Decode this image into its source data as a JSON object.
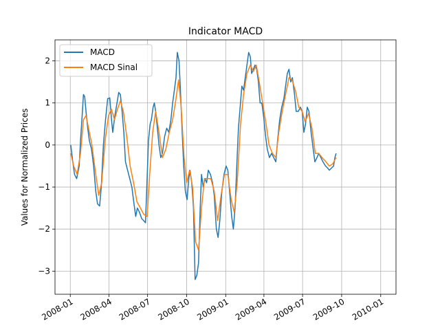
{
  "chart_data": {
    "type": "line",
    "title": "Indicator MACD",
    "xlabel": "",
    "ylabel": "Values for Normalized Prices",
    "xlim": [
      "2007-11-26",
      "2010-02-06"
    ],
    "ylim": [
      -3.55,
      2.5
    ],
    "x_ticks": [
      "2008-01",
      "2008-04",
      "2008-07",
      "2008-10",
      "2009-01",
      "2009-04",
      "2009-07",
      "2009-10",
      "2010-01"
    ],
    "y_ticks": [
      -3,
      -2,
      -1,
      0,
      1,
      2
    ],
    "grid": true,
    "legend_position": "top-left",
    "series": [
      {
        "name": "MACD",
        "color": "#1f77b4",
        "points": [
          [
            "2008-01-02",
            0.0
          ],
          [
            "2008-01-07",
            -0.4
          ],
          [
            "2008-01-11",
            -0.7
          ],
          [
            "2008-01-16",
            -0.8
          ],
          [
            "2008-01-22",
            -0.5
          ],
          [
            "2008-01-25",
            0.1
          ],
          [
            "2008-01-29",
            0.7
          ],
          [
            "2008-02-01",
            1.2
          ],
          [
            "2008-02-04",
            1.15
          ],
          [
            "2008-02-07",
            0.8
          ],
          [
            "2008-02-11",
            0.4
          ],
          [
            "2008-02-15",
            0.1
          ],
          [
            "2008-02-20",
            -0.1
          ],
          [
            "2008-02-25",
            -0.5
          ],
          [
            "2008-03-01",
            -1.1
          ],
          [
            "2008-03-05",
            -1.4
          ],
          [
            "2008-03-10",
            -1.45
          ],
          [
            "2008-03-14",
            -1.0
          ],
          [
            "2008-03-19",
            0.0
          ],
          [
            "2008-03-24",
            0.6
          ],
          [
            "2008-03-29",
            1.1
          ],
          [
            "2008-04-03",
            1.12
          ],
          [
            "2008-04-07",
            0.6
          ],
          [
            "2008-04-10",
            0.3
          ],
          [
            "2008-04-15",
            0.7
          ],
          [
            "2008-04-20",
            1.0
          ],
          [
            "2008-04-24",
            1.25
          ],
          [
            "2008-04-28",
            1.2
          ],
          [
            "2008-05-02",
            0.8
          ],
          [
            "2008-05-06",
            0.3
          ],
          [
            "2008-05-10",
            -0.4
          ],
          [
            "2008-05-15",
            -0.6
          ],
          [
            "2008-05-20",
            -0.8
          ],
          [
            "2008-05-25",
            -1.0
          ],
          [
            "2008-05-30",
            -1.4
          ],
          [
            "2008-06-03",
            -1.7
          ],
          [
            "2008-06-07",
            -1.5
          ],
          [
            "2008-06-12",
            -1.6
          ],
          [
            "2008-06-17",
            -1.75
          ],
          [
            "2008-06-22",
            -1.8
          ],
          [
            "2008-06-26",
            -1.85
          ],
          [
            "2008-06-30",
            -0.8
          ],
          [
            "2008-07-03",
            0.1
          ],
          [
            "2008-07-07",
            0.5
          ],
          [
            "2008-07-10",
            0.6
          ],
          [
            "2008-07-14",
            0.9
          ],
          [
            "2008-07-17",
            1.0
          ],
          [
            "2008-07-20",
            0.8
          ],
          [
            "2008-07-24",
            0.4
          ],
          [
            "2008-07-28",
            0.0
          ],
          [
            "2008-08-01",
            -0.3
          ],
          [
            "2008-08-05",
            -0.2
          ],
          [
            "2008-08-10",
            0.2
          ],
          [
            "2008-08-15",
            0.4
          ],
          [
            "2008-08-20",
            0.3
          ],
          [
            "2008-08-25",
            0.6
          ],
          [
            "2008-08-29",
            1.0
          ],
          [
            "2008-09-02",
            1.3
          ],
          [
            "2008-09-06",
            1.6
          ],
          [
            "2008-09-09",
            2.2
          ],
          [
            "2008-09-13",
            2.0
          ],
          [
            "2008-09-16",
            1.4
          ],
          [
            "2008-09-20",
            0.4
          ],
          [
            "2008-09-24",
            -0.5
          ],
          [
            "2008-09-28",
            -1.1
          ],
          [
            "2008-10-02",
            -1.3
          ],
          [
            "2008-10-06",
            -0.8
          ],
          [
            "2008-10-09",
            -0.6
          ],
          [
            "2008-10-13",
            -0.9
          ],
          [
            "2008-10-17",
            -1.5
          ],
          [
            "2008-10-21",
            -3.2
          ],
          [
            "2008-10-25",
            -3.1
          ],
          [
            "2008-10-29",
            -2.8
          ],
          [
            "2008-11-02",
            -1.5
          ],
          [
            "2008-11-05",
            -0.7
          ],
          [
            "2008-11-09",
            -1.0
          ],
          [
            "2008-11-13",
            -0.8
          ],
          [
            "2008-11-17",
            -0.9
          ],
          [
            "2008-11-21",
            -0.6
          ],
          [
            "2008-11-26",
            -0.7
          ],
          [
            "2008-12-01",
            -0.9
          ],
          [
            "2008-12-05",
            -1.2
          ],
          [
            "2008-12-10",
            -2.0
          ],
          [
            "2008-12-14",
            -2.2
          ],
          [
            "2008-12-18",
            -1.8
          ],
          [
            "2008-12-23",
            -1.1
          ],
          [
            "2008-12-28",
            -0.7
          ],
          [
            "2009-01-02",
            -0.5
          ],
          [
            "2009-01-06",
            -0.6
          ],
          [
            "2009-01-10",
            -1.1
          ],
          [
            "2009-01-15",
            -1.7
          ],
          [
            "2009-01-19",
            -2.0
          ],
          [
            "2009-01-23",
            -1.5
          ],
          [
            "2009-01-27",
            -0.5
          ],
          [
            "2009-01-31",
            0.4
          ],
          [
            "2009-02-04",
            0.9
          ],
          [
            "2009-02-08",
            1.4
          ],
          [
            "2009-02-12",
            1.3
          ],
          [
            "2009-02-16",
            1.6
          ],
          [
            "2009-02-20",
            1.9
          ],
          [
            "2009-02-24",
            2.2
          ],
          [
            "2009-02-28",
            2.1
          ],
          [
            "2009-03-03",
            1.7
          ],
          [
            "2009-03-07",
            1.8
          ],
          [
            "2009-03-11",
            1.9
          ],
          [
            "2009-03-15",
            1.8
          ],
          [
            "2009-03-19",
            1.5
          ],
          [
            "2009-03-23",
            1.0
          ],
          [
            "2009-03-27",
            1.0
          ],
          [
            "2009-03-31",
            0.7
          ],
          [
            "2009-04-05",
            0.2
          ],
          [
            "2009-04-09",
            -0.1
          ],
          [
            "2009-04-14",
            -0.3
          ],
          [
            "2009-04-19",
            -0.2
          ],
          [
            "2009-04-24",
            -0.3
          ],
          [
            "2009-04-29",
            -0.4
          ],
          [
            "2009-05-03",
            0.1
          ],
          [
            "2009-05-08",
            0.6
          ],
          [
            "2009-05-13",
            0.9
          ],
          [
            "2009-05-18",
            1.1
          ],
          [
            "2009-05-22",
            1.4
          ],
          [
            "2009-05-26",
            1.7
          ],
          [
            "2009-05-30",
            1.8
          ],
          [
            "2009-06-03",
            1.5
          ],
          [
            "2009-06-07",
            1.6
          ],
          [
            "2009-06-12",
            1.2
          ],
          [
            "2009-06-16",
            0.8
          ],
          [
            "2009-06-21",
            0.8
          ],
          [
            "2009-06-26",
            0.9
          ],
          [
            "2009-06-30",
            0.8
          ],
          [
            "2009-07-04",
            0.3
          ],
          [
            "2009-07-08",
            0.5
          ],
          [
            "2009-07-12",
            0.9
          ],
          [
            "2009-07-16",
            0.8
          ],
          [
            "2009-07-21",
            0.3
          ],
          [
            "2009-07-26",
            -0.1
          ],
          [
            "2009-07-30",
            -0.4
          ],
          [
            "2009-08-04",
            -0.3
          ],
          [
            "2009-08-08",
            -0.2
          ],
          [
            "2009-08-13",
            -0.3
          ],
          [
            "2009-08-18",
            -0.4
          ],
          [
            "2009-08-24",
            -0.5
          ],
          [
            "2009-08-29",
            -0.55
          ],
          [
            "2009-09-02",
            -0.6
          ],
          [
            "2009-09-07",
            -0.55
          ],
          [
            "2009-09-12",
            -0.5
          ],
          [
            "2009-09-15",
            -0.3
          ],
          [
            "2009-09-18",
            -0.2
          ]
        ]
      },
      {
        "name": "MACD Sinal",
        "color": "#ff7f0e",
        "points": [
          [
            "2008-01-02",
            -0.2
          ],
          [
            "2008-01-09",
            -0.5
          ],
          [
            "2008-01-17",
            -0.7
          ],
          [
            "2008-01-25",
            -0.2
          ],
          [
            "2008-02-01",
            0.6
          ],
          [
            "2008-02-07",
            0.7
          ],
          [
            "2008-02-14",
            0.35
          ],
          [
            "2008-02-21",
            0.0
          ],
          [
            "2008-03-01",
            -0.7
          ],
          [
            "2008-03-08",
            -1.2
          ],
          [
            "2008-03-15",
            -0.9
          ],
          [
            "2008-03-23",
            0.1
          ],
          [
            "2008-03-31",
            0.7
          ],
          [
            "2008-04-07",
            0.85
          ],
          [
            "2008-04-14",
            0.6
          ],
          [
            "2008-04-21",
            0.85
          ],
          [
            "2008-04-28",
            1.05
          ],
          [
            "2008-05-05",
            0.8
          ],
          [
            "2008-05-13",
            0.2
          ],
          [
            "2008-05-21",
            -0.5
          ],
          [
            "2008-05-29",
            -0.9
          ],
          [
            "2008-06-06",
            -1.35
          ],
          [
            "2008-06-14",
            -1.5
          ],
          [
            "2008-06-22",
            -1.65
          ],
          [
            "2008-06-30",
            -1.7
          ],
          [
            "2008-07-06",
            -0.7
          ],
          [
            "2008-07-13",
            0.3
          ],
          [
            "2008-07-20",
            0.8
          ],
          [
            "2008-07-28",
            0.3
          ],
          [
            "2008-08-05",
            -0.3
          ],
          [
            "2008-08-13",
            -0.1
          ],
          [
            "2008-08-21",
            0.3
          ],
          [
            "2008-08-29",
            0.6
          ],
          [
            "2008-09-06",
            1.1
          ],
          [
            "2008-09-12",
            1.55
          ],
          [
            "2008-09-18",
            0.9
          ],
          [
            "2008-09-25",
            -0.3
          ],
          [
            "2008-10-01",
            -0.9
          ],
          [
            "2008-10-08",
            -0.6
          ],
          [
            "2008-10-15",
            -1.0
          ],
          [
            "2008-10-22",
            -2.3
          ],
          [
            "2008-10-29",
            -2.5
          ],
          [
            "2008-11-05",
            -1.5
          ],
          [
            "2008-11-12",
            -0.8
          ],
          [
            "2008-11-19",
            -0.8
          ],
          [
            "2008-11-27",
            -0.8
          ],
          [
            "2008-12-05",
            -1.1
          ],
          [
            "2008-12-13",
            -1.8
          ],
          [
            "2008-12-21",
            -1.2
          ],
          [
            "2008-12-29",
            -0.7
          ],
          [
            "2009-01-06",
            -0.7
          ],
          [
            "2009-01-14",
            -1.3
          ],
          [
            "2009-01-21",
            -1.6
          ],
          [
            "2009-01-28",
            -0.9
          ],
          [
            "2009-02-05",
            0.5
          ],
          [
            "2009-02-12",
            1.2
          ],
          [
            "2009-02-20",
            1.7
          ],
          [
            "2009-02-28",
            1.9
          ],
          [
            "2009-03-07",
            1.75
          ],
          [
            "2009-03-14",
            1.9
          ],
          [
            "2009-03-21",
            1.5
          ],
          [
            "2009-03-29",
            1.0
          ],
          [
            "2009-04-06",
            0.5
          ],
          [
            "2009-04-13",
            0.0
          ],
          [
            "2009-04-21",
            -0.2
          ],
          [
            "2009-04-29",
            -0.3
          ],
          [
            "2009-05-06",
            0.3
          ],
          [
            "2009-05-14",
            0.8
          ],
          [
            "2009-05-22",
            1.2
          ],
          [
            "2009-05-30",
            1.6
          ],
          [
            "2009-06-06",
            1.55
          ],
          [
            "2009-06-14",
            1.3
          ],
          [
            "2009-06-22",
            0.9
          ],
          [
            "2009-06-30",
            0.8
          ],
          [
            "2009-07-07",
            0.55
          ],
          [
            "2009-07-15",
            0.75
          ],
          [
            "2009-07-23",
            0.4
          ],
          [
            "2009-07-31",
            -0.2
          ],
          [
            "2009-08-08",
            -0.2
          ],
          [
            "2009-08-16",
            -0.3
          ],
          [
            "2009-08-25",
            -0.4
          ],
          [
            "2009-09-02",
            -0.5
          ],
          [
            "2009-09-10",
            -0.45
          ],
          [
            "2009-09-18",
            -0.3
          ]
        ]
      }
    ]
  }
}
